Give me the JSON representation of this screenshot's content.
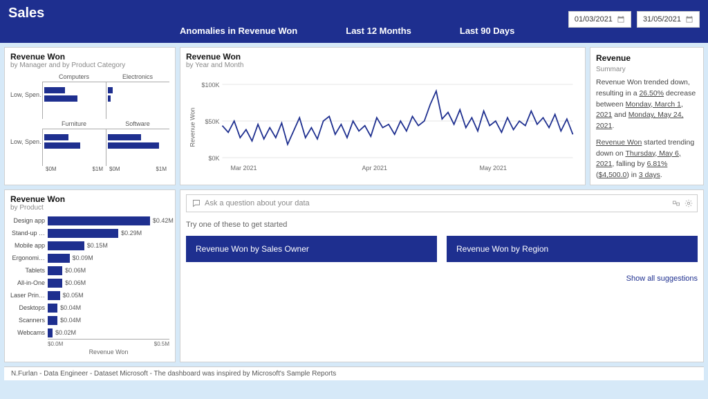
{
  "colors": {
    "brand": "#1e2f8f",
    "page_bg": "#d6e9f8",
    "card_bg": "#ffffff",
    "grid": "#e5e5e5",
    "text_muted": "#888888"
  },
  "header": {
    "title": "Sales",
    "tabs": [
      "Anomalies in Revenue Won",
      "Last 12 Months",
      "Last 90 Days"
    ],
    "date_from": "01/03/2021",
    "date_to": "31/05/2021"
  },
  "mgr_card": {
    "title": "Revenue Won",
    "subtitle": "by Manager and by Product Category",
    "col_headers": [
      "Computers",
      "Electronics",
      "Furniture",
      "Software"
    ],
    "row_header": "Low, Spen…",
    "xaxis_labels": [
      "$0M",
      "$1M"
    ],
    "cells": {
      "computers": [
        0.35,
        0.55
      ],
      "electronics": [
        0.08,
        0.05
      ],
      "furniture": [
        0.4,
        0.6
      ],
      "software": [
        0.55,
        0.85
      ]
    }
  },
  "line_card": {
    "title": "Revenue Won",
    "subtitle": "by Year and Month",
    "y_title": "Revenue Won",
    "y_ticks": [
      "$100K",
      "$50K",
      "$0K"
    ],
    "x_ticks": [
      "Mar 2021",
      "Apr 2021",
      "May 2021"
    ],
    "ylim": [
      0,
      110
    ],
    "series_color": "#1e2f8f",
    "line_width": 1.8,
    "values": [
      48,
      38,
      55,
      30,
      42,
      25,
      50,
      28,
      45,
      30,
      52,
      20,
      40,
      60,
      30,
      45,
      28,
      55,
      62,
      35,
      50,
      30,
      55,
      40,
      48,
      32,
      60,
      45,
      50,
      35,
      55,
      40,
      62,
      48,
      55,
      80,
      100,
      58,
      68,
      50,
      72,
      45,
      60,
      40,
      70,
      48,
      55,
      38,
      60,
      42,
      55,
      48,
      70,
      50,
      60,
      45,
      65,
      40,
      58,
      35
    ]
  },
  "summary_card": {
    "title": "Revenue",
    "subtitle": "Summary",
    "p1_a": "Revenue Won trended down, resulting in a ",
    "p1_pct": "26.50%",
    "p1_b": " decrease between ",
    "p1_d1": "Monday, March 1, 2021",
    "p1_c": " and ",
    "p1_d2": "Monday, May 24, 2021",
    "p1_end": ".",
    "p2_a": "Revenue Won",
    "p2_b": " started trending down on ",
    "p2_d": "Thursday, May 6, 2021",
    "p2_c": ", falling by ",
    "p2_pct": "6.81%",
    "p2_paren_open": " (",
    "p2_amt": "$4,500.0",
    "p2_paren_close": ") in ",
    "p2_days": "3 days",
    "p2_end": "."
  },
  "product_card": {
    "title": "Revenue Won",
    "subtitle": "by Product",
    "x_title": "Revenue Won",
    "xlim": [
      0,
      0.5
    ],
    "xaxis_labels": [
      "$0.0M",
      "$0.5M"
    ],
    "bar_color": "#1e2f8f",
    "items": [
      {
        "label": "Design app",
        "value": 0.42,
        "fmt": "$0.42M"
      },
      {
        "label": "Stand-up …",
        "value": 0.29,
        "fmt": "$0.29M"
      },
      {
        "label": "Mobile app",
        "value": 0.15,
        "fmt": "$0.15M"
      },
      {
        "label": "Ergonomi…",
        "value": 0.09,
        "fmt": "$0.09M"
      },
      {
        "label": "Tablets",
        "value": 0.06,
        "fmt": "$0.06M"
      },
      {
        "label": "All-in-One",
        "value": 0.06,
        "fmt": "$0.06M"
      },
      {
        "label": "Laser Prin…",
        "value": 0.05,
        "fmt": "$0.05M"
      },
      {
        "label": "Desktops",
        "value": 0.04,
        "fmt": "$0.04M"
      },
      {
        "label": "Scanners",
        "value": 0.04,
        "fmt": "$0.04M"
      },
      {
        "label": "Webcams",
        "value": 0.02,
        "fmt": "$0.02M"
      }
    ]
  },
  "qna": {
    "placeholder": "Ask a question about your data",
    "try_label": "Try one of these to get started",
    "suggestions": [
      "Revenue Won by Sales Owner",
      "Revenue Won by Region"
    ],
    "show_all": "Show all suggestions"
  },
  "footer": "N.Furlan - Data Engineer - Dataset Microsoft - The dashboard was inspired by Microsoft's Sample Reports"
}
